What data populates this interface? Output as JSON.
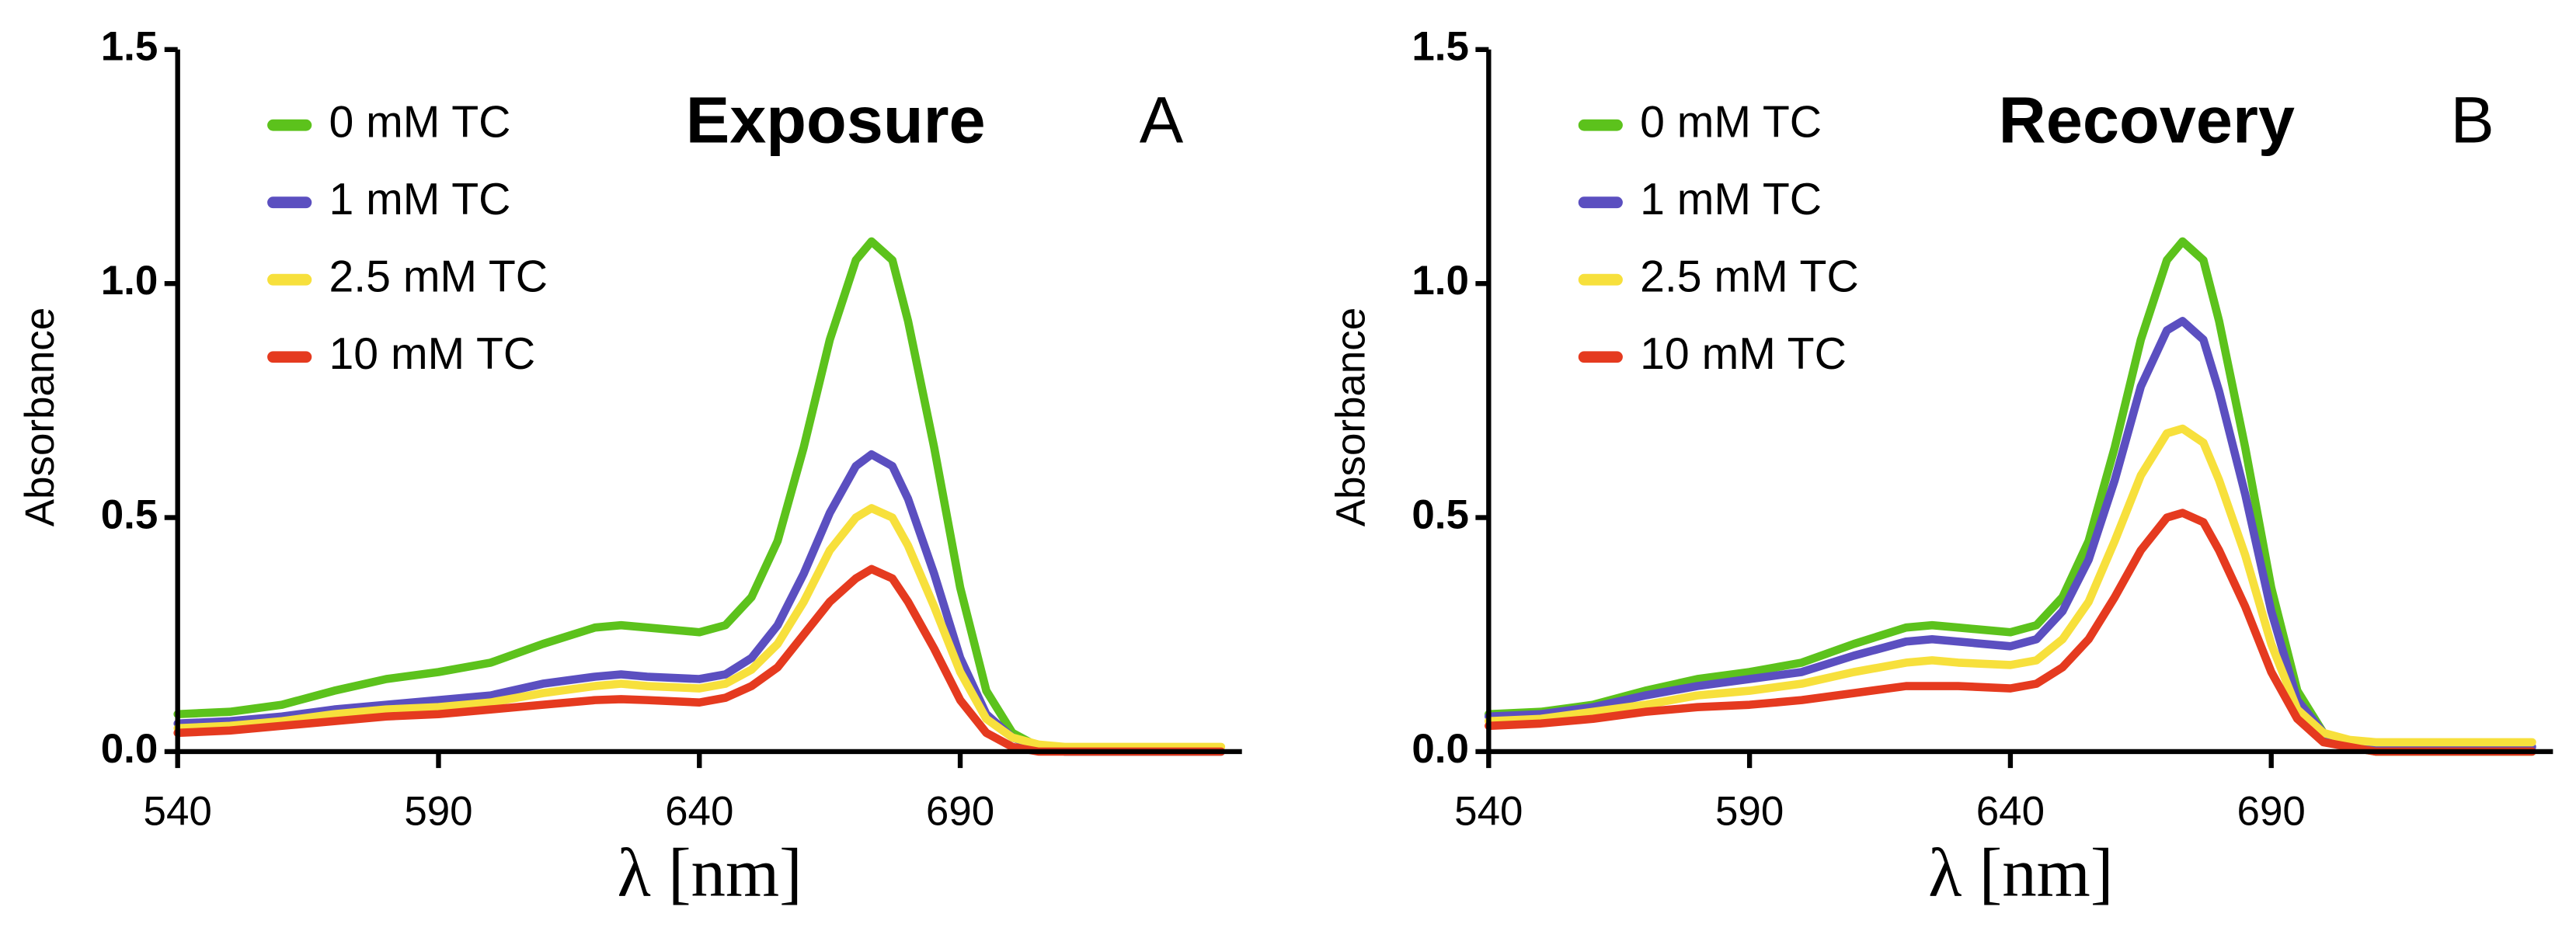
{
  "chart_data": [
    {
      "type": "line",
      "title": "Exposure",
      "annotation": "A",
      "xlabel": "λ [nm]",
      "ylabel": "Absorbance",
      "xlim": [
        540,
        744
      ],
      "xticks": [
        540,
        590,
        640,
        690
      ],
      "ylim": [
        0,
        1.5
      ],
      "yticks": [
        {
          "value": 0,
          "label": "0.0"
        },
        {
          "value": 0.5,
          "label": "0.5"
        },
        {
          "value": 1,
          "label": "1.0"
        },
        {
          "value": 1.5,
          "label": "1.5"
        }
      ],
      "legend": "upper left",
      "x": [
        540,
        550,
        560,
        570,
        580,
        590,
        600,
        610,
        620,
        625,
        630,
        640,
        645,
        650,
        655,
        660,
        665,
        670,
        673,
        677,
        680,
        685,
        690,
        695,
        700,
        705,
        710,
        720,
        730,
        740
      ],
      "series": [
        {
          "name": "0 mM TC",
          "color": "#5cc21c",
          "values": [
            0.08,
            0.085,
            0.1,
            0.13,
            0.155,
            0.17,
            0.19,
            0.23,
            0.265,
            0.27,
            0.265,
            0.255,
            0.27,
            0.33,
            0.45,
            0.65,
            0.88,
            1.05,
            1.09,
            1.05,
            0.92,
            0.65,
            0.35,
            0.13,
            0.04,
            0.01,
            0,
            0,
            0,
            0
          ]
        },
        {
          "name": "1 mM TC",
          "color": "#5b4fc0",
          "values": [
            0.06,
            0.065,
            0.075,
            0.09,
            0.1,
            0.11,
            0.12,
            0.145,
            0.16,
            0.165,
            0.16,
            0.155,
            0.165,
            0.2,
            0.27,
            0.38,
            0.51,
            0.61,
            0.635,
            0.61,
            0.54,
            0.38,
            0.2,
            0.08,
            0.03,
            0.01,
            0,
            0,
            0,
            0
          ]
        },
        {
          "name": "2.5 mM TC",
          "color": "#f7e03c",
          "values": [
            0.05,
            0.055,
            0.065,
            0.08,
            0.09,
            0.095,
            0.105,
            0.125,
            0.14,
            0.145,
            0.14,
            0.135,
            0.145,
            0.175,
            0.23,
            0.32,
            0.43,
            0.5,
            0.52,
            0.5,
            0.44,
            0.31,
            0.17,
            0.07,
            0.03,
            0.015,
            0.01,
            0.01,
            0.01,
            0.01
          ]
        },
        {
          "name": "10 mM TC",
          "color": "#e53a1f",
          "values": [
            0.04,
            0.045,
            0.055,
            0.065,
            0.075,
            0.08,
            0.09,
            0.1,
            0.11,
            0.112,
            0.11,
            0.105,
            0.115,
            0.14,
            0.18,
            0.25,
            0.32,
            0.37,
            0.39,
            0.37,
            0.32,
            0.22,
            0.11,
            0.04,
            0.01,
            0,
            0,
            0,
            0,
            0
          ]
        }
      ]
    },
    {
      "type": "line",
      "title": "Recovery",
      "annotation": "B",
      "xlabel": "λ [nm]",
      "ylabel": "Absorbance",
      "xlim": [
        540,
        744
      ],
      "xticks": [
        540,
        590,
        640,
        690
      ],
      "ylim": [
        0,
        1.5
      ],
      "yticks": [
        {
          "value": 0,
          "label": "0.0"
        },
        {
          "value": 0.5,
          "label": "0.5"
        },
        {
          "value": 1,
          "label": "1.0"
        },
        {
          "value": 1.5,
          "label": "1.5"
        }
      ],
      "legend": "upper left",
      "x": [
        540,
        550,
        560,
        570,
        580,
        590,
        600,
        610,
        620,
        625,
        630,
        640,
        645,
        650,
        655,
        660,
        665,
        670,
        673,
        677,
        680,
        685,
        690,
        695,
        700,
        705,
        710,
        720,
        730,
        740
      ],
      "series": [
        {
          "name": "0 mM TC",
          "color": "#5cc21c",
          "values": [
            0.08,
            0.085,
            0.1,
            0.13,
            0.155,
            0.17,
            0.19,
            0.23,
            0.265,
            0.27,
            0.265,
            0.255,
            0.27,
            0.33,
            0.45,
            0.65,
            0.88,
            1.05,
            1.09,
            1.05,
            0.92,
            0.65,
            0.35,
            0.13,
            0.04,
            0.01,
            0,
            0,
            0,
            0
          ]
        },
        {
          "name": "1  mM TC",
          "color": "#5b4fc0",
          "values": [
            0.075,
            0.08,
            0.095,
            0.12,
            0.14,
            0.155,
            0.17,
            0.205,
            0.235,
            0.24,
            0.235,
            0.225,
            0.24,
            0.3,
            0.41,
            0.58,
            0.78,
            0.9,
            0.92,
            0.88,
            0.77,
            0.55,
            0.3,
            0.11,
            0.04,
            0.015,
            0.01,
            0.01,
            0.01,
            0.01
          ]
        },
        {
          "name": "2.5 mM TC",
          "color": "#f7e03c",
          "values": [
            0.065,
            0.07,
            0.085,
            0.1,
            0.12,
            0.13,
            0.145,
            0.17,
            0.19,
            0.195,
            0.19,
            0.185,
            0.195,
            0.24,
            0.32,
            0.45,
            0.59,
            0.68,
            0.69,
            0.66,
            0.58,
            0.42,
            0.23,
            0.09,
            0.04,
            0.025,
            0.02,
            0.02,
            0.02,
            0.02
          ]
        },
        {
          "name": "10 mM TC",
          "color": "#e53a1f",
          "values": [
            0.055,
            0.06,
            0.07,
            0.085,
            0.095,
            0.1,
            0.11,
            0.125,
            0.14,
            0.14,
            0.14,
            0.135,
            0.145,
            0.18,
            0.24,
            0.33,
            0.43,
            0.5,
            0.51,
            0.49,
            0.43,
            0.31,
            0.17,
            0.07,
            0.02,
            0.01,
            0,
            0,
            0,
            0
          ]
        }
      ]
    }
  ]
}
